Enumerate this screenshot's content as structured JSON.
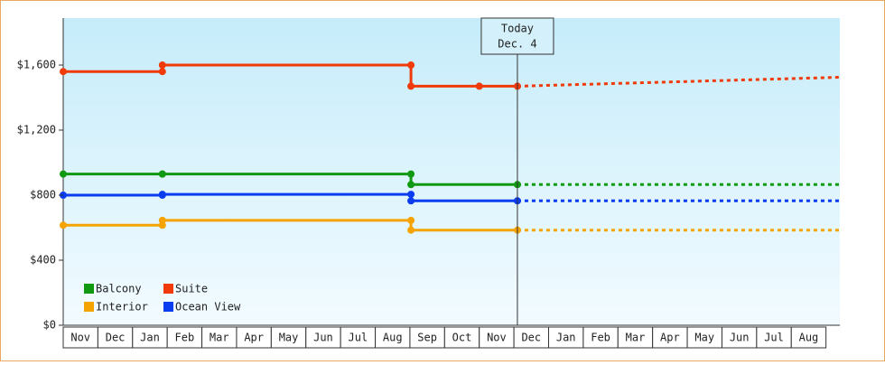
{
  "chart_data": {
    "type": "step-line",
    "xlim": [
      0,
      22.4
    ],
    "xticks": [
      {
        "value": 0.5,
        "label": "Nov"
      },
      {
        "value": 1.5,
        "label": "Dec"
      },
      {
        "value": 2.5,
        "label": "Jan"
      },
      {
        "value": 3.5,
        "label": "Feb"
      },
      {
        "value": 4.5,
        "label": "Mar"
      },
      {
        "value": 5.5,
        "label": "Apr"
      },
      {
        "value": 6.5,
        "label": "May"
      },
      {
        "value": 7.5,
        "label": "Jun"
      },
      {
        "value": 8.5,
        "label": "Jul"
      },
      {
        "value": 9.5,
        "label": "Aug"
      },
      {
        "value": 10.5,
        "label": "Sep"
      },
      {
        "value": 11.5,
        "label": "Oct"
      },
      {
        "value": 12.5,
        "label": "Nov"
      },
      {
        "value": 13.5,
        "label": "Dec"
      },
      {
        "value": 14.5,
        "label": "Jan"
      },
      {
        "value": 15.5,
        "label": "Feb"
      },
      {
        "value": 16.5,
        "label": "Mar"
      },
      {
        "value": 17.5,
        "label": "Apr"
      },
      {
        "value": 18.5,
        "label": "May"
      },
      {
        "value": 19.5,
        "label": "Jun"
      },
      {
        "value": 20.5,
        "label": "Jul"
      },
      {
        "value": 21.5,
        "label": "Aug"
      }
    ],
    "ylim": [
      0,
      1889
    ],
    "yticks": [
      {
        "value": 0,
        "label": "$0"
      },
      {
        "value": 400,
        "label": "$400"
      },
      {
        "value": 800,
        "label": "$800"
      },
      {
        "value": 1200,
        "label": "$1,200"
      },
      {
        "value": 1600,
        "label": "$1,600"
      }
    ],
    "today_x": 13.1,
    "today_label": "Today",
    "today_date": "Dec. 4",
    "series": [
      {
        "name": "Balcony",
        "color": "#119911",
        "x": [
          0,
          2.86,
          2.86,
          10.03,
          10.03,
          13.1,
          22.4
        ],
        "values": [
          930,
          930,
          930,
          930,
          865,
          865,
          865
        ]
      },
      {
        "name": "Suite",
        "color": "#f03a0a",
        "x": [
          0,
          2.86,
          2.86,
          10.03,
          10.03,
          12.0,
          13.1,
          22.4
        ],
        "values": [
          1560,
          1560,
          1600,
          1600,
          1470,
          1470,
          1470,
          1525
        ]
      },
      {
        "name": "Interior",
        "color": "#f5a300",
        "x": [
          0,
          2.86,
          2.86,
          10.03,
          10.03,
          13.1,
          22.4
        ],
        "values": [
          615,
          615,
          645,
          645,
          585,
          585,
          585
        ]
      },
      {
        "name": "Ocean View",
        "color": "#0a3cf0",
        "x": [
          0,
          2.86,
          2.86,
          10.03,
          10.03,
          13.1,
          22.4
        ],
        "values": [
          800,
          800,
          805,
          805,
          765,
          765,
          765
        ]
      }
    ]
  }
}
